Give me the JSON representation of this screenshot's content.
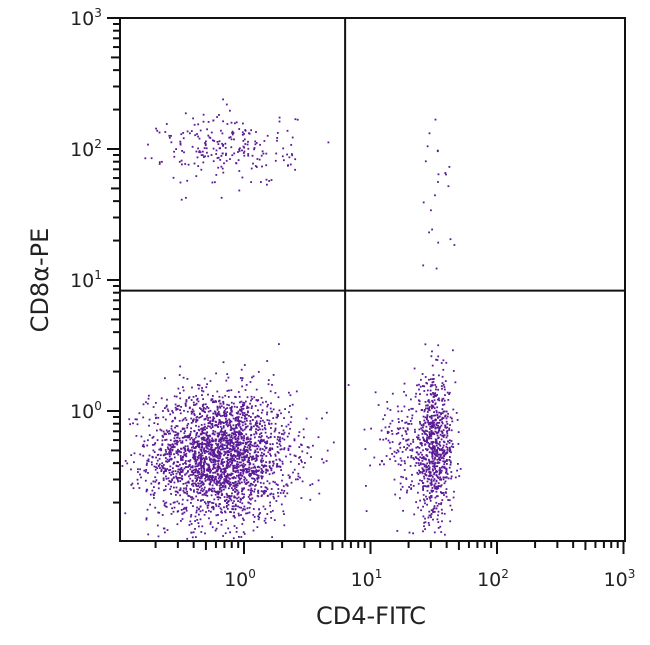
{
  "chart_data": {
    "type": "scatter",
    "subtype": "flow-cytometry-dot-plot",
    "title": "",
    "xlabel": "CD4-FITC",
    "ylabel": "CD8α-PE",
    "xscale": "log",
    "yscale": "log",
    "xlim": [
      0.1,
      1000
    ],
    "ylim": [
      0.1,
      1000
    ],
    "x_ticks": [
      {
        "value": 1,
        "base": "10",
        "exp": "0"
      },
      {
        "value": 10,
        "base": "10",
        "exp": "1"
      },
      {
        "value": 100,
        "base": "10",
        "exp": "2"
      },
      {
        "value": 1000,
        "base": "10",
        "exp": "3"
      }
    ],
    "y_ticks": [
      {
        "value": 1,
        "base": "10",
        "exp": "0"
      },
      {
        "value": 10,
        "base": "10",
        "exp": "1"
      },
      {
        "value": 100,
        "base": "10",
        "exp": "2"
      },
      {
        "value": 1000,
        "base": "10",
        "exp": "3"
      }
    ],
    "grid": false,
    "legend": null,
    "quadrant_gates": {
      "x": 6.3,
      "y": 8.3
    },
    "dot_color": "#5a1a96",
    "populations": [
      {
        "name": "CD4-CD8- (double negative)",
        "quadrant": "lower-left",
        "center_x": 0.65,
        "center_y": 0.45,
        "spread_log_x": 0.28,
        "spread_log_y": 0.25,
        "count": 2600
      },
      {
        "name": "CD4+CD8- (CD4 single positive)",
        "quadrant": "lower-right",
        "center_x": 32,
        "center_y": 0.5,
        "spread_log_x": 0.08,
        "spread_log_y": 0.27,
        "count": 750
      },
      {
        "name": "CD4+CD8- shoulder",
        "quadrant": "lower-right",
        "center_x": 18,
        "center_y": 0.6,
        "spread_log_x": 0.12,
        "spread_log_y": 0.22,
        "count": 150
      },
      {
        "name": "CD4-CD8+ (CD8 single positive)",
        "quadrant": "upper-left",
        "center_x": 0.75,
        "center_y": 100,
        "spread_log_x": 0.26,
        "spread_log_y": 0.14,
        "count": 230
      },
      {
        "name": "CD4+CD8+ (double positive, sparse)",
        "quadrant": "upper-right",
        "center_x": 35,
        "center_y": 40,
        "spread_log_x": 0.1,
        "spread_log_y": 0.3,
        "count": 22
      }
    ]
  }
}
